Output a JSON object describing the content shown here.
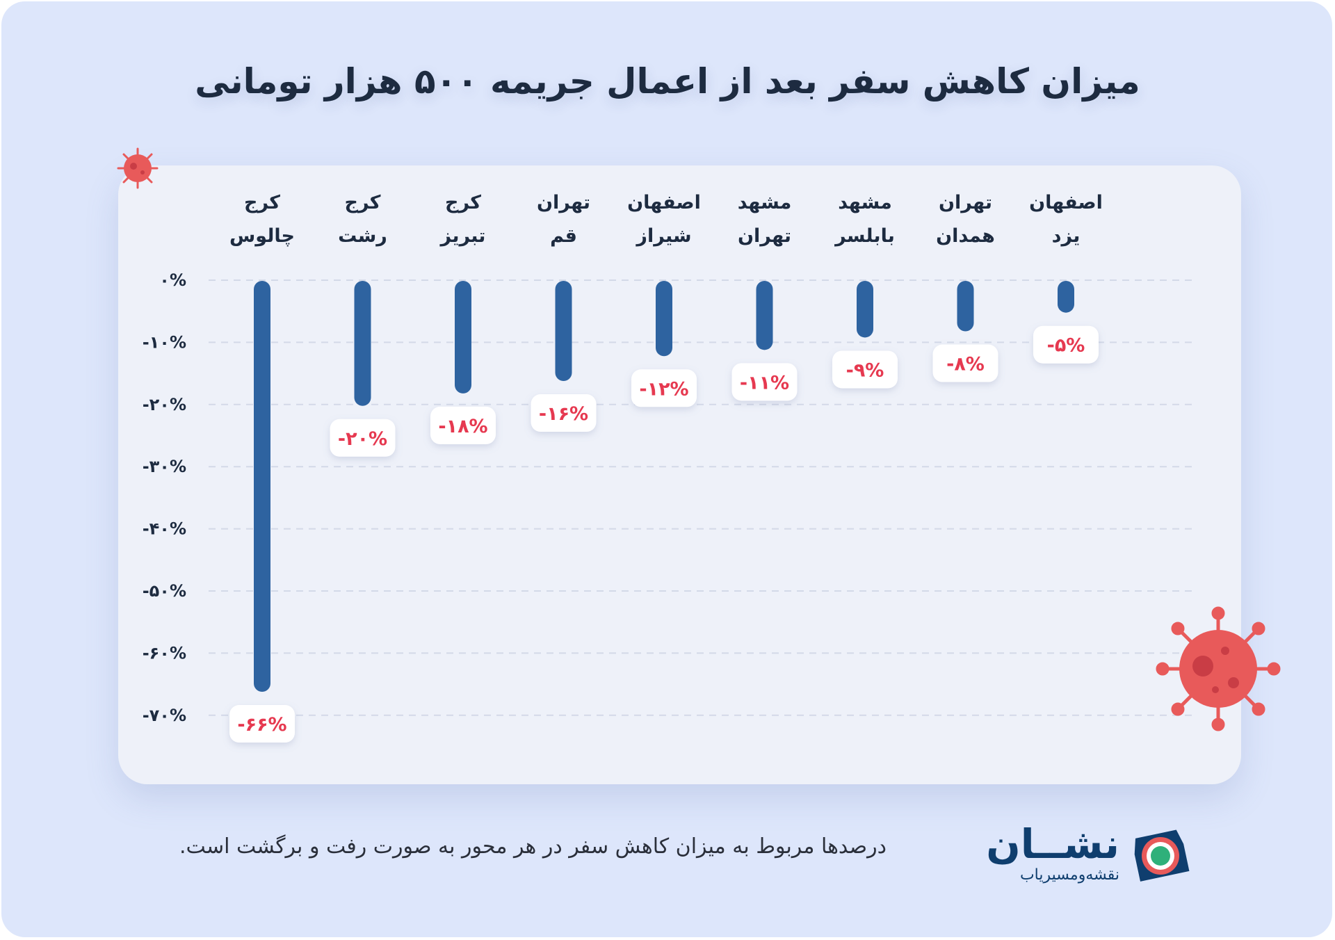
{
  "title": "میزان کاهش سفر بعد از اعمال جریمه ۵۰۰ هزار تومانی",
  "footnote": "درصدها مربوط به میزان کاهش سفر در هر محور به صورت رفت و برگشت است.",
  "brand": {
    "name": "نشــان",
    "tagline": "نقشه‌ومسیریاب"
  },
  "colors": {
    "bar": "#2e63a0",
    "label_text": "#e63950",
    "virus": "#e85a5a",
    "background": "#dde6fb",
    "card": "#eef1f9",
    "logo": "#0f3e6e",
    "logo_accent": "#e85a5a",
    "logo_center": "#2fb07a"
  },
  "icons": [
    "virus-icon",
    "nashan-logo-icon"
  ],
  "chart_data": {
    "type": "bar",
    "orientation": "vertical-negative",
    "categories": [
      [
        "کرج",
        "چالوس"
      ],
      [
        "کرج",
        "رشت"
      ],
      [
        "کرج",
        "تبریز"
      ],
      [
        "تهران",
        "قم"
      ],
      [
        "اصفهان",
        "شیراز"
      ],
      [
        "مشهد",
        "تهران"
      ],
      [
        "مشهد",
        "بابلسر"
      ],
      [
        "تهران",
        "همدان"
      ],
      [
        "اصفهان",
        "یزد"
      ]
    ],
    "values": [
      -66,
      -20,
      -18,
      -16,
      -12,
      -11,
      -9,
      -8,
      -5
    ],
    "value_labels": [
      "-۶۶%",
      "-۲۰%",
      "-۱۸%",
      "-۱۶%",
      "-۱۲%",
      "-۱۱%",
      "-۹%",
      "-۸%",
      "-۵%"
    ],
    "ylim": [
      -70,
      0
    ],
    "yticks": [
      0,
      -10,
      -20,
      -30,
      -40,
      -50,
      -60,
      -70
    ],
    "ytick_labels": [
      "۰%",
      "-۱۰%",
      "-۲۰%",
      "-۳۰%",
      "-۴۰%",
      "-۵۰%",
      "-۶۰%",
      "-۷۰%"
    ],
    "grid": true,
    "legend": "none"
  }
}
